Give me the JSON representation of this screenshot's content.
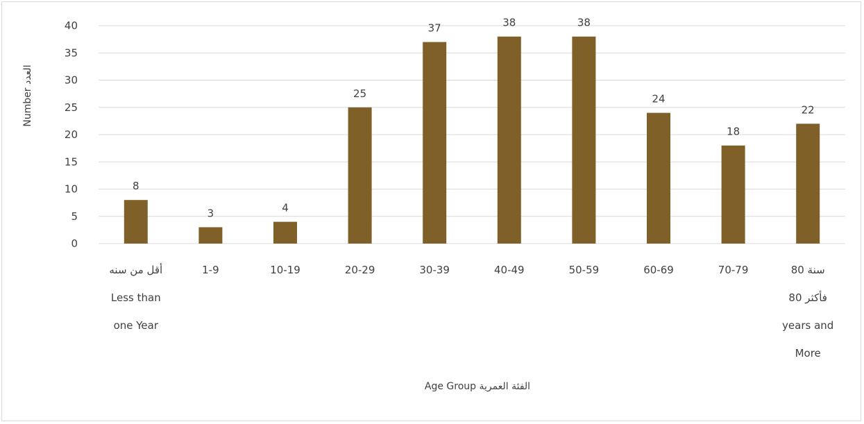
{
  "chart_data": {
    "type": "bar",
    "categories": [
      [
        "أقل من سنه",
        "Less than",
        "one Year"
      ],
      [
        "1-9"
      ],
      [
        "10-19"
      ],
      [
        "20-29"
      ],
      [
        "30-39"
      ],
      [
        "40-49"
      ],
      [
        "50-59"
      ],
      [
        "60-69"
      ],
      [
        "70-79"
      ],
      [
        "80 سنة",
        "فأكثر 80",
        "years and",
        "More"
      ]
    ],
    "values": [
      8,
      3,
      4,
      25,
      37,
      38,
      38,
      24,
      18,
      22
    ],
    "xlabel": "Age Group الفئة العمرية",
    "ylabel": "Number العدد",
    "ylim": [
      0,
      40
    ],
    "yticks": [
      0,
      5,
      10,
      15,
      20,
      25,
      30,
      35,
      40
    ],
    "grid": true,
    "legend": "none",
    "bar_color": "#7f6029",
    "data_labels": true
  }
}
